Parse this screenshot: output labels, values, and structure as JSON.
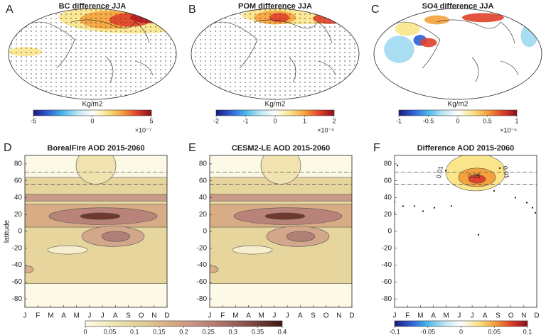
{
  "chart_data": [
    {
      "type": "map",
      "panel": "A",
      "title": "BC difference JJA",
      "colorbar": {
        "label": "Kg/m2",
        "lim": [
          -5,
          5
        ],
        "ticks": [
          -5,
          0,
          5
        ],
        "multiplier": "×10⁻⁷",
        "colormap": [
          "#1a1a7a",
          "#2f5fd6",
          "#48b8ec",
          "#bde6f4",
          "#ffffff",
          "#fbe58a",
          "#f6a23c",
          "#e0412a",
          "#8b0f1a"
        ]
      }
    },
    {
      "type": "map",
      "panel": "B",
      "title": "POM difference JJA",
      "colorbar": {
        "label": "Kg/m2",
        "lim": [
          -2,
          2
        ],
        "ticks": [
          -2,
          -1,
          0,
          1,
          2
        ],
        "multiplier": "×10⁻⁵",
        "colormap": [
          "#1a1a7a",
          "#2f5fd6",
          "#48b8ec",
          "#bde6f4",
          "#ffffff",
          "#fbe58a",
          "#f6a23c",
          "#e0412a",
          "#8b0f1a"
        ]
      }
    },
    {
      "type": "map",
      "panel": "C",
      "title": "SO4 difference JJA",
      "colorbar": {
        "label": "Kg/m2",
        "lim": [
          -1,
          1
        ],
        "ticks": [
          -1,
          -0.5,
          0,
          0.5,
          1
        ],
        "multiplier": "×10⁻⁶",
        "colormap": [
          "#1a1a7a",
          "#2f5fd6",
          "#48b8ec",
          "#bde6f4",
          "#ffffff",
          "#fbe58a",
          "#f6a23c",
          "#e0412a",
          "#8b0f1a"
        ]
      }
    },
    {
      "type": "contour",
      "panel": "D",
      "title": "BorealFire AOD 2015-2060",
      "ylabel": "latitude",
      "categories": [
        "J",
        "F",
        "M",
        "A",
        "M",
        "J",
        "J",
        "A",
        "S",
        "O",
        "N",
        "D"
      ],
      "ylim": [
        -90,
        90
      ],
      "yticks": [
        -80,
        -60,
        -40,
        -20,
        0,
        20,
        40,
        60,
        80
      ],
      "reference_lines": [
        70,
        56
      ],
      "colorbar": {
        "lim": [
          0,
          0.4
        ],
        "ticks": [
          0,
          0.05,
          0.1,
          0.15,
          0.2,
          0.25,
          0.3,
          0.35,
          0.4
        ],
        "colormap": [
          "#fdfbe9",
          "#f1e6b4",
          "#e3cf96",
          "#d8ad86",
          "#c58f80",
          "#a86d68",
          "#7a4842",
          "#3d1610"
        ]
      }
    },
    {
      "type": "contour",
      "panel": "E",
      "title": "CESM2-LE AOD 2015-2060",
      "categories": [
        "J",
        "F",
        "M",
        "A",
        "M",
        "J",
        "J",
        "A",
        "S",
        "O",
        "N",
        "D"
      ],
      "ylim": [
        -90,
        90
      ],
      "yticks": [
        -80,
        -60,
        -40,
        -20,
        0,
        20,
        40,
        60,
        80
      ],
      "reference_lines": [
        70,
        56
      ]
    },
    {
      "type": "difference",
      "panel": "F",
      "title": "Difference AOD 2015-2060",
      "categories": [
        "J",
        "F",
        "M",
        "A",
        "M",
        "J",
        "J",
        "A",
        "S",
        "O",
        "N",
        "D"
      ],
      "ylim": [
        -90,
        90
      ],
      "yticks": [
        -80,
        -60,
        -40,
        -20,
        0,
        20,
        40,
        60,
        80
      ],
      "reference_lines": [
        70,
        56
      ],
      "contour_labels": [
        "0.01",
        "0.01",
        "0.05"
      ],
      "colorbar": {
        "lim": [
          -0.1,
          0.1
        ],
        "ticks": [
          -0.1,
          -0.05,
          0,
          0.05,
          0.1
        ],
        "colormap": [
          "#1a1a7a",
          "#2f5fd6",
          "#48b8ec",
          "#bde6f4",
          "#ffffff",
          "#fbe58a",
          "#f6a23c",
          "#e0412a",
          "#8b0f1a"
        ]
      }
    }
  ]
}
